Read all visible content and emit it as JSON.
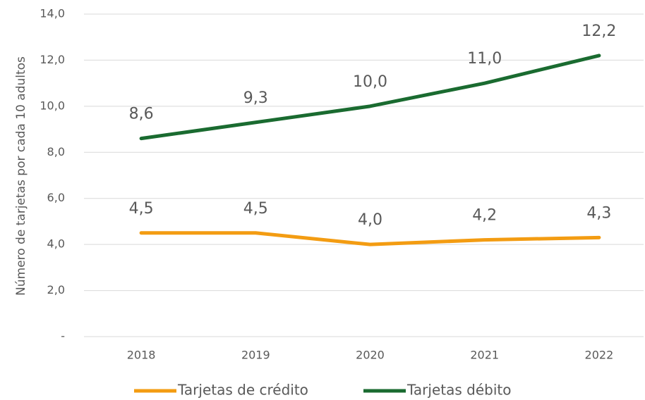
{
  "chart_data": {
    "type": "line",
    "y_label": "Número de tarjetas por cada 10 adultos",
    "categories": [
      "2018",
      "2019",
      "2020",
      "2021",
      "2022"
    ],
    "series": [
      {
        "name": "Tarjetas de crédito",
        "color": "#f39c12",
        "values": [
          4.5,
          4.5,
          4.0,
          4.2,
          4.3
        ],
        "value_labels": [
          "4,5",
          "4,5",
          "4,0",
          "4,2",
          "4,3"
        ]
      },
      {
        "name": "Tarjetas débito",
        "color": "#1a6b30",
        "values": [
          8.6,
          9.3,
          10.0,
          11.0,
          12.2
        ],
        "value_labels": [
          "8,6",
          "9,3",
          "10,0",
          "11,0",
          "12,2"
        ]
      }
    ],
    "ylim": [
      0,
      14
    ],
    "yticks": [
      {
        "value": 0,
        "label": "-"
      },
      {
        "value": 2,
        "label": "2,0"
      },
      {
        "value": 4,
        "label": "4,0"
      },
      {
        "value": 6,
        "label": "6,0"
      },
      {
        "value": 8,
        "label": "8,0"
      },
      {
        "value": 10,
        "label": "10,0"
      },
      {
        "value": 12,
        "label": "12,0"
      },
      {
        "value": 14,
        "label": "14,0"
      }
    ],
    "grid": true,
    "legend": "bottom"
  }
}
